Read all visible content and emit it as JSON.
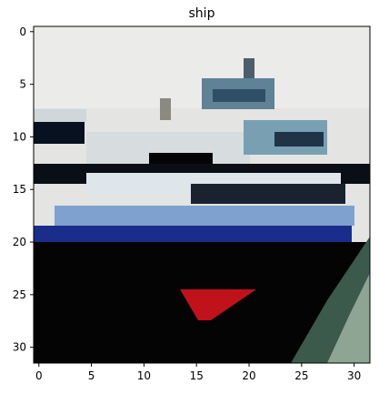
{
  "figure": {
    "title": "ship"
  },
  "image": {
    "label": "ship",
    "resolution": [
      32,
      32
    ],
    "colors": {
      "sky": "#e4e4e2",
      "sky_light": "#eaeaea",
      "hull_black": "#040404",
      "deck_white": "#d8dde0",
      "cabin_blue": "#4f7b90",
      "stripe_blue": "#1a2a86",
      "sail_red": "#c4121a",
      "water_green": "#6f8f7c"
    }
  },
  "axes": {
    "x_ticks": [
      "0",
      "5",
      "10",
      "15",
      "20",
      "25",
      "30"
    ],
    "y_ticks": [
      "0",
      "5",
      "10",
      "15",
      "20",
      "25",
      "30"
    ]
  }
}
